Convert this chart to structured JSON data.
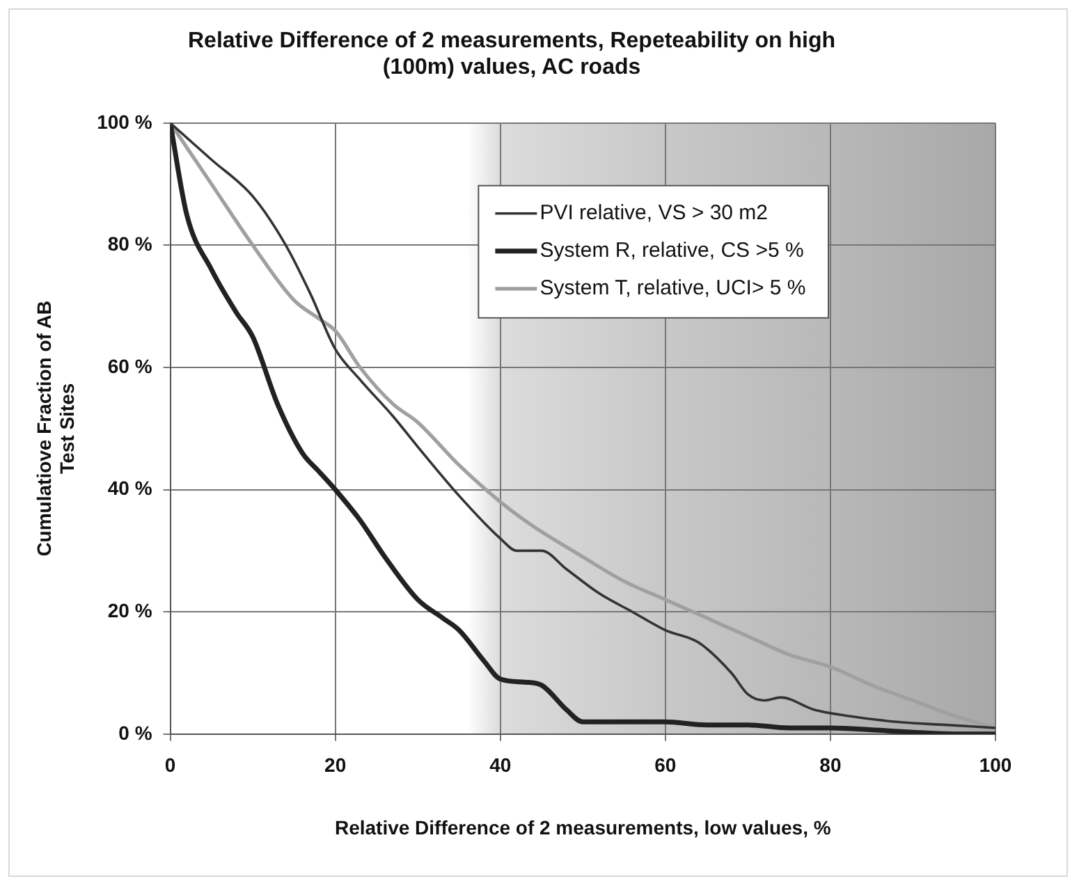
{
  "chart_data": {
    "type": "line",
    "title": "Relative Difference of 2 measurements, Repeteability on high (100m) values, AC roads",
    "xlabel": "Relative Difference of 2 measurements, low values, %",
    "ylabel": "Cumulatiove Fraction of AB Test Sites",
    "xlim": [
      0,
      100
    ],
    "xticks": [
      0,
      20,
      40,
      60,
      80,
      100
    ],
    "ylim": [
      0,
      100
    ],
    "yticks": [
      {
        "value": 0,
        "label": "0 %"
      },
      {
        "value": 20,
        "label": "20 %"
      },
      {
        "value": 40,
        "label": "40 %"
      },
      {
        "value": 60,
        "label": "60 %"
      },
      {
        "value": 80,
        "label": "80 %"
      },
      {
        "value": 100,
        "label": "100 %"
      }
    ],
    "grid": true,
    "legend": "top right",
    "marker": "none",
    "line_style": "solid",
    "series": [
      {
        "name": "PVI relative, VS > 30 m2",
        "color": "#333333",
        "x": [
          0,
          5,
          10,
          14,
          17,
          20,
          23,
          27,
          30,
          35,
          40,
          42,
          45,
          48,
          52,
          56,
          60,
          64,
          68,
          70,
          72,
          74,
          78,
          82,
          88,
          94,
          100
        ],
        "values": [
          100,
          94,
          88,
          80,
          72,
          63,
          58,
          52,
          47,
          39,
          32,
          30,
          30,
          27,
          23,
          20,
          17,
          15,
          10,
          6.5,
          5.5,
          6,
          4,
          3,
          2,
          1.5,
          1
        ]
      },
      {
        "name": "System R, relative, CS >5 %",
        "color": "#222222",
        "x": [
          0,
          2,
          5,
          8,
          10,
          13,
          16,
          18,
          20,
          23,
          26,
          30,
          33,
          35,
          38,
          40,
          43,
          45,
          48,
          50,
          55,
          60,
          65,
          70,
          75,
          80,
          85,
          90,
          95,
          100
        ],
        "values": [
          100,
          85,
          76,
          69,
          65,
          54,
          46,
          43,
          40,
          35,
          29,
          22,
          19,
          17,
          12,
          9,
          8.5,
          8,
          4,
          2,
          2,
          2,
          1.5,
          1.5,
          1,
          1,
          0.7,
          0.3,
          0,
          0
        ]
      },
      {
        "name": "System T, relative, UCI> 5 %",
        "color": "#a0a0a0",
        "x": [
          0,
          5,
          10,
          15,
          18,
          20,
          23,
          27,
          30,
          35,
          40,
          44,
          50,
          55,
          60,
          65,
          70,
          75,
          80,
          85,
          90,
          95,
          100
        ],
        "values": [
          100,
          90,
          80,
          71,
          68,
          66,
          60,
          54,
          51,
          44,
          38,
          34,
          29,
          25,
          22,
          19,
          16,
          13,
          11,
          8,
          5.5,
          3,
          1
        ]
      }
    ]
  }
}
